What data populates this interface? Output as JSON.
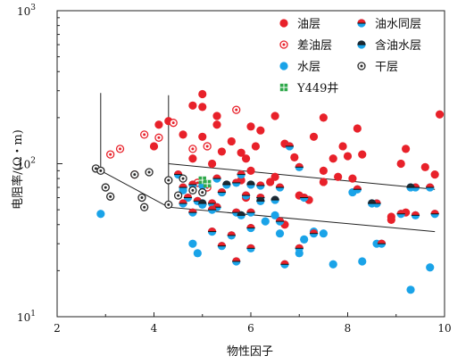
{
  "chart_data": {
    "type": "scatter",
    "title": "",
    "xlabel": "物性因子",
    "ylabel": "电阻率/(Ω・m)",
    "xlim": [
      2,
      10
    ],
    "ylim": [
      10,
      1000
    ],
    "yscale": "log",
    "x_ticks": [
      "2",
      "4",
      "6",
      "8",
      "10"
    ],
    "y_ticks": [
      {
        "base": "10",
        "exp": "1",
        "value": 10
      },
      {
        "base": "10",
        "exp": "2",
        "value": 100
      },
      {
        "base": "10",
        "exp": "3",
        "value": 1000
      }
    ],
    "legend_position": "top-right",
    "colors": {
      "oil": "#e8212a",
      "water": "#1aa3e8",
      "well": "#2ea84a",
      "dark": "#2a2a2a"
    },
    "series": [
      {
        "name": "油层",
        "marker": "oil",
        "points": [
          [
            5.0,
            285
          ],
          [
            4.8,
            240
          ],
          [
            5.0,
            235
          ],
          [
            5.3,
            205
          ],
          [
            6.5,
            205
          ],
          [
            7.5,
            200
          ],
          [
            6.2,
            165
          ],
          [
            4.3,
            190
          ],
          [
            9.9,
            210
          ],
          [
            4.1,
            180
          ],
          [
            5.3,
            180
          ],
          [
            6.0,
            175
          ],
          [
            8.2,
            170
          ],
          [
            7.3,
            150
          ],
          [
            4.6,
            155
          ],
          [
            5.0,
            150
          ],
          [
            5.6,
            140
          ],
          [
            6.7,
            135
          ],
          [
            6.1,
            130
          ],
          [
            7.9,
            130
          ],
          [
            9.2,
            125
          ],
          [
            4.0,
            130
          ],
          [
            5.4,
            120
          ],
          [
            5.8,
            118
          ],
          [
            4.8,
            108
          ],
          [
            5.9,
            108
          ],
          [
            6.9,
            110
          ],
          [
            7.7,
            108
          ],
          [
            8.0,
            112
          ],
          [
            8.3,
            115
          ],
          [
            9.1,
            100
          ],
          [
            9.6,
            95
          ],
          [
            5.2,
            100
          ],
          [
            7.5,
            90
          ],
          [
            6.0,
            90
          ],
          [
            7.8,
            82
          ],
          [
            8.1,
            80
          ],
          [
            9.8,
            85
          ],
          [
            6.5,
            82
          ],
          [
            5.8,
            78
          ],
          [
            6.4,
            76
          ],
          [
            7.5,
            76
          ],
          [
            7.0,
            62
          ],
          [
            7.2,
            58
          ],
          [
            9.2,
            48
          ],
          [
            8.9,
            45
          ],
          [
            8.9,
            43
          ],
          [
            6.7,
            40
          ],
          [
            4.9,
            75
          ],
          [
            5.9,
            60
          ]
        ]
      },
      {
        "name": "差油层",
        "marker": "dot-red",
        "points": [
          [
            5.7,
            225
          ],
          [
            4.4,
            185
          ],
          [
            3.8,
            155
          ],
          [
            4.1,
            148
          ],
          [
            3.3,
            125
          ],
          [
            4.8,
            125
          ],
          [
            5.1,
            130
          ],
          [
            3.1,
            115
          ],
          [
            3.6,
            85
          ],
          [
            4.9,
            75
          ],
          [
            5.1,
            70
          ]
        ]
      },
      {
        "name": "水层",
        "marker": "water",
        "points": [
          [
            2.9,
            47
          ],
          [
            4.8,
            30
          ],
          [
            4.9,
            26
          ],
          [
            4.6,
            67
          ],
          [
            5.0,
            72
          ],
          [
            6.3,
            42
          ],
          [
            6.6,
            35
          ],
          [
            7.1,
            32
          ],
          [
            7.3,
            36
          ],
          [
            7.5,
            35
          ],
          [
            8.1,
            65
          ],
          [
            8.6,
            30
          ],
          [
            6.5,
            46
          ],
          [
            7.0,
            26
          ],
          [
            7.7,
            22
          ],
          [
            8.3,
            23
          ],
          [
            9.3,
            15
          ],
          [
            9.7,
            21
          ]
        ]
      },
      {
        "name": "油水同层",
        "marker": "half",
        "points": [
          [
            4.5,
            85
          ],
          [
            4.8,
            73
          ],
          [
            4.7,
            60
          ],
          [
            4.9,
            57
          ],
          [
            5.2,
            55
          ],
          [
            4.6,
            55
          ],
          [
            5.0,
            54
          ],
          [
            5.3,
            52
          ],
          [
            5.2,
            50
          ],
          [
            5.7,
            48
          ],
          [
            6.0,
            48
          ],
          [
            4.8,
            48
          ],
          [
            5.9,
            62
          ],
          [
            6.2,
            60
          ],
          [
            6.6,
            70
          ],
          [
            7.1,
            60
          ],
          [
            7.0,
            95
          ],
          [
            6.8,
            130
          ],
          [
            5.8,
            85
          ],
          [
            5.4,
            65
          ],
          [
            8.6,
            55
          ],
          [
            8.2,
            68
          ],
          [
            9.4,
            70
          ],
          [
            9.7,
            70
          ],
          [
            9.1,
            47
          ],
          [
            9.4,
            46
          ],
          [
            9.8,
            47
          ],
          [
            6.6,
            42
          ],
          [
            5.2,
            36
          ],
          [
            5.6,
            34
          ],
          [
            6.0,
            38
          ],
          [
            5.4,
            29
          ],
          [
            6.0,
            28
          ],
          [
            6.7,
            22
          ],
          [
            5.7,
            23
          ],
          [
            7.3,
            35
          ],
          [
            7.0,
            28
          ],
          [
            8.7,
            30
          ],
          [
            5.3,
            80
          ],
          [
            5.7,
            75
          ],
          [
            6.2,
            72
          ],
          [
            4.6,
            70
          ]
        ]
      },
      {
        "name": "含油水层",
        "marker": "half-dark",
        "points": [
          [
            5.5,
            73
          ],
          [
            6.0,
            73
          ],
          [
            6.5,
            58
          ],
          [
            5.0,
            55
          ],
          [
            5.8,
            46
          ],
          [
            6.2,
            57
          ],
          [
            9.3,
            70
          ],
          [
            8.5,
            55
          ]
        ]
      },
      {
        "name": "干层",
        "marker": "dot-dark",
        "points": [
          [
            2.8,
            93
          ],
          [
            2.9,
            90
          ],
          [
            3.0,
            70
          ],
          [
            3.1,
            61
          ],
          [
            3.6,
            85
          ],
          [
            3.75,
            60
          ],
          [
            3.8,
            52
          ],
          [
            3.9,
            88
          ],
          [
            4.3,
            78
          ],
          [
            4.3,
            54
          ],
          [
            4.5,
            62
          ],
          [
            4.6,
            80
          ],
          [
            4.8,
            67
          ],
          [
            5.0,
            65
          ]
        ]
      },
      {
        "name": "Y449井",
        "marker": "well",
        "points": [
          [
            5.0,
            78
          ],
          [
            5.1,
            74
          ]
        ]
      }
    ],
    "boundary_lines": [
      [
        [
          2.9,
          290
        ],
        [
          2.9,
          90
        ],
        [
          4.3,
          52
        ]
      ],
      [
        [
          4.3,
          280
        ],
        [
          4.3,
          52
        ],
        [
          9.8,
          36
        ]
      ],
      [
        [
          4.3,
          100
        ],
        [
          9.8,
          68
        ]
      ]
    ]
  }
}
